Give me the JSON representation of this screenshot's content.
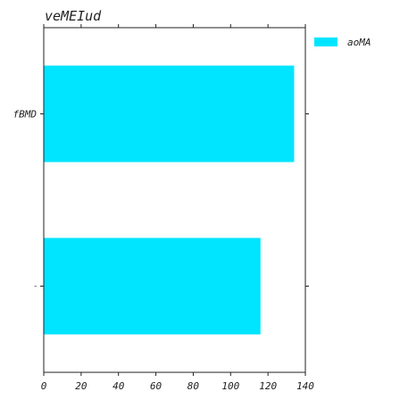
{
  "chart_data": {
    "type": "bar",
    "orientation": "horizontal",
    "title": "veMEIud",
    "xlabel": "",
    "ylabel": "",
    "categories": [
      "fBMD",
      "¬"
    ],
    "series": [
      {
        "name": "aoMA",
        "values": [
          134,
          116
        ],
        "color": "#00e5ff"
      }
    ],
    "xlim": [
      0,
      140
    ],
    "xticks": [
      0,
      20,
      40,
      60,
      80,
      100,
      120,
      140
    ],
    "grid": false,
    "legend_position": "right-top"
  }
}
